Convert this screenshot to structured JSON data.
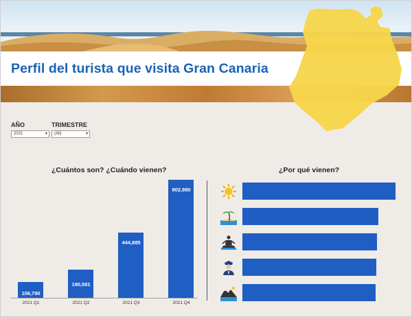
{
  "header": {
    "title": "Perfil del turista que visita Gran Canaria"
  },
  "filters": {
    "year": {
      "label": "AÑO",
      "value": "2021"
    },
    "quarter": {
      "label": "TRIMESTRE",
      "value": "(All)"
    }
  },
  "arrivals": {
    "title": "¿Cuántos son? ¿Cuándo vienen?"
  },
  "reasons": {
    "title": "¿Por qué vienen?",
    "items": [
      {
        "icon": "sun-icon",
        "share": 1.0
      },
      {
        "icon": "palm-beach-icon",
        "share": 0.89
      },
      {
        "icon": "meditation-icon",
        "share": 0.88
      },
      {
        "icon": "police-officer-icon",
        "share": 0.875
      },
      {
        "icon": "mountain-landscape-icon",
        "share": 0.87
      }
    ]
  },
  "colors": {
    "accent": "#1f5ec2",
    "title": "#1a62b5",
    "island": "#f7d54a",
    "background": "#efebe7"
  },
  "chart_data": {
    "type": "bar",
    "title": "¿Cuántos son? ¿Cuándo vienen?",
    "categories": [
      "2021 Q1",
      "2021 Q2",
      "2021 Q3",
      "2021 Q4"
    ],
    "values": [
      106790,
      190581,
      444885,
      802980
    ],
    "value_labels": [
      "106,790",
      "190,581",
      "444,885",
      "802,980"
    ],
    "ylim": [
      0,
      802980
    ],
    "grid": false,
    "legend": "none"
  }
}
